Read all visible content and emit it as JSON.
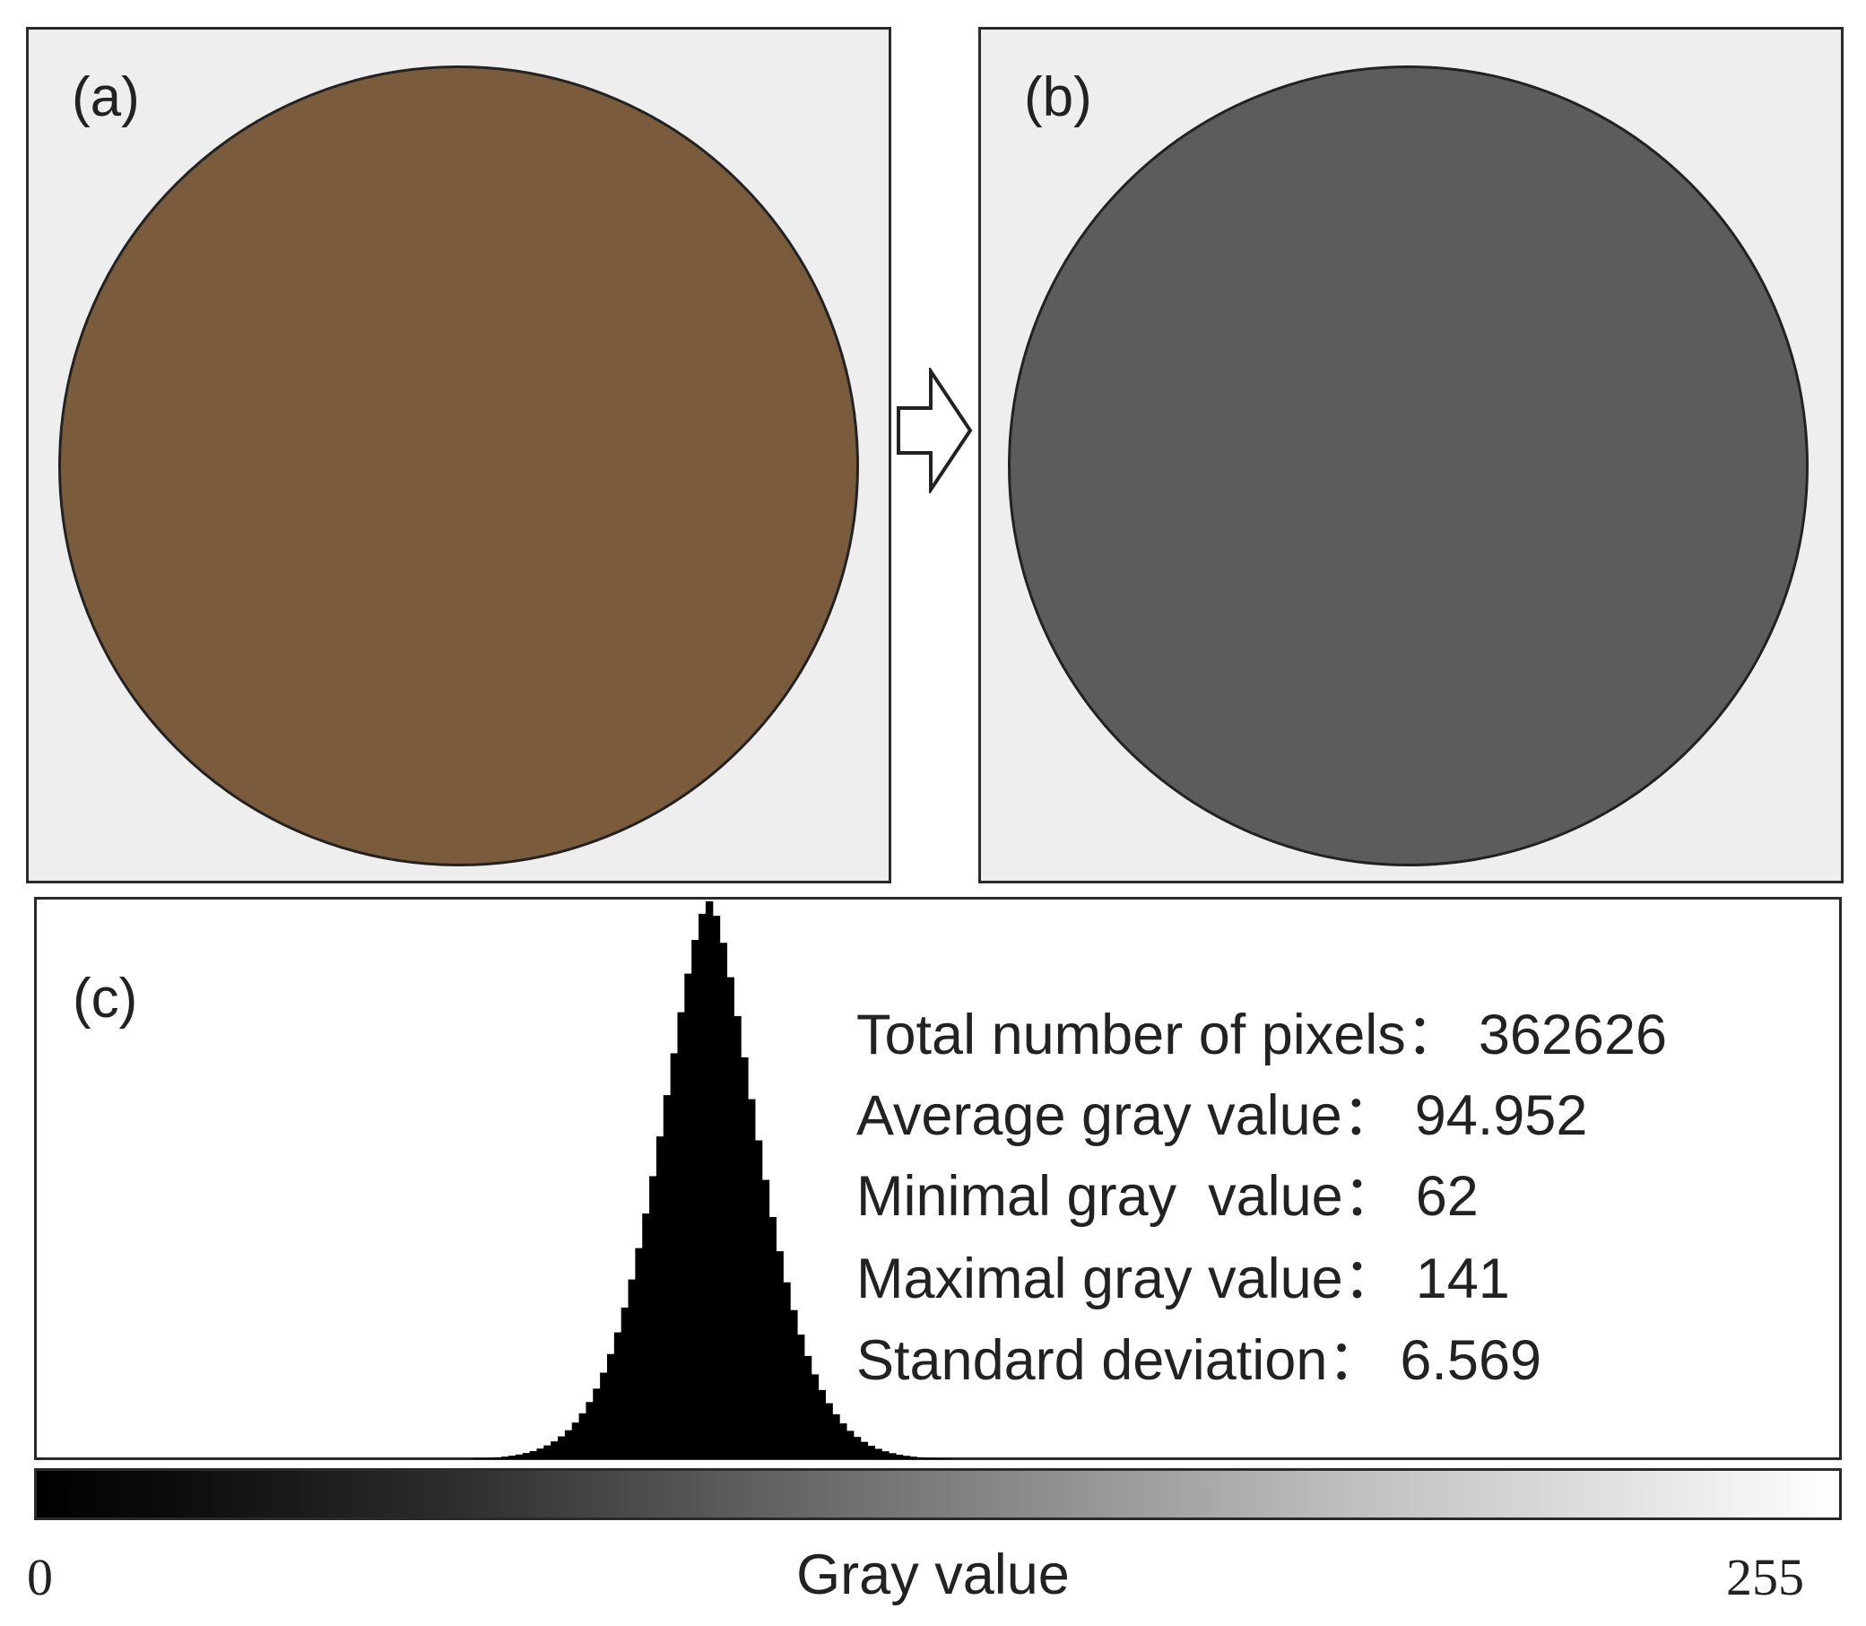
{
  "panels": {
    "a": {
      "label": "(a)",
      "disk_color": "#7a5c3c"
    },
    "b": {
      "label": "(b)",
      "disk_color": "#5c5c5c"
    },
    "c": {
      "label": "(c)"
    }
  },
  "arrow_icon": "hollow-right-arrow-icon",
  "stats": [
    {
      "label": "Total number of pixels：",
      "value": "362626"
    },
    {
      "label": "Average gray value：",
      "value": "94.952"
    },
    {
      "label": "Minimal gray  value：",
      "value": "62"
    },
    {
      "label": "Maximal gray value：",
      "value": "141"
    },
    {
      "label": "Standard deviation：",
      "value": "6.569"
    }
  ],
  "chart_data": {
    "type": "histogram",
    "xlabel": "Gray value",
    "xlim": [
      0,
      255
    ],
    "tick_labels": [
      "0",
      "255"
    ],
    "total_pixels": 362626,
    "mean": 94.952,
    "min": 62,
    "max": 141,
    "std": 6.569,
    "bar_color": "#000000",
    "colorbar": "grayscale 0-255"
  }
}
